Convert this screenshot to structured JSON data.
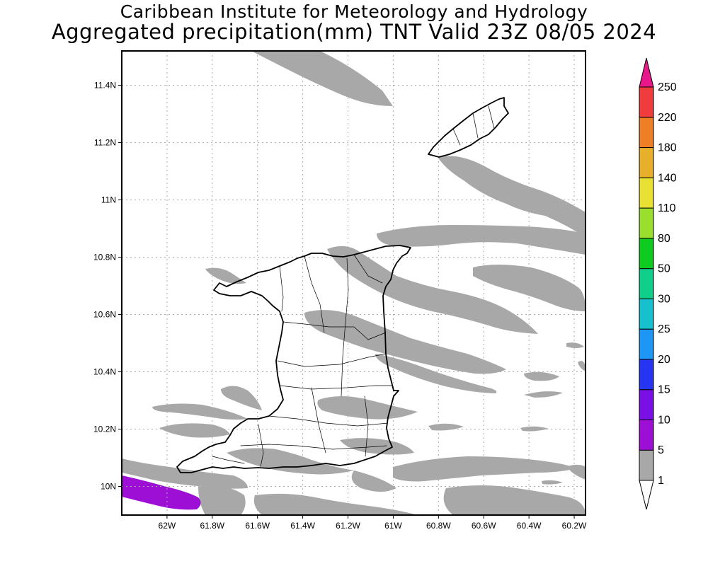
{
  "header": {
    "title_line1": "Caribbean Institute for Meteorology and Hydrology",
    "title_line2": "Aggregated precipitation(mm) TNT Valid 23Z 08/05 2024"
  },
  "map": {
    "lon_range": [
      -62.2,
      -60.15
    ],
    "lat_range": [
      9.9,
      11.52
    ],
    "lon_ticks": [
      {
        "value": -62.0,
        "label": "62W"
      },
      {
        "value": -61.8,
        "label": "61.8W"
      },
      {
        "value": -61.6,
        "label": "61.6W"
      },
      {
        "value": -61.4,
        "label": "61.4W"
      },
      {
        "value": -61.2,
        "label": "61.2W"
      },
      {
        "value": -61.0,
        "label": "61W"
      },
      {
        "value": -60.8,
        "label": "60.8W"
      },
      {
        "value": -60.6,
        "label": "60.6W"
      },
      {
        "value": -60.4,
        "label": "60.4W"
      },
      {
        "value": -60.2,
        "label": "60.2W"
      }
    ],
    "lat_ticks": [
      {
        "value": 10.0,
        "label": "10N"
      },
      {
        "value": 10.2,
        "label": "10.2N"
      },
      {
        "value": 10.4,
        "label": "10.4N"
      },
      {
        "value": 10.6,
        "label": "10.6N"
      },
      {
        "value": 10.8,
        "label": "10.8N"
      },
      {
        "value": 11.0,
        "label": "11N"
      },
      {
        "value": 11.2,
        "label": "11.2N"
      },
      {
        "value": 11.4,
        "label": "11.4N"
      }
    ],
    "grid": true,
    "precip_band_color": "#a8a8a8",
    "precip_high_color": "#9e0fd6",
    "coast_color": "#000000"
  },
  "colorbar": {
    "levels": [
      "1",
      "5",
      "10",
      "15",
      "20",
      "25",
      "30",
      "50",
      "80",
      "110",
      "140",
      "180",
      "220",
      "250"
    ],
    "colors": [
      "#a8a8a8",
      "#9e0fd6",
      "#7b10e6",
      "#2535f2",
      "#1e96f5",
      "#16c0cc",
      "#10cf8a",
      "#0fcb20",
      "#9bdf2e",
      "#e8e032",
      "#e8b02a",
      "#ee7f27",
      "#f03c3c",
      "#e8188a"
    ],
    "under_color": "#ffffff"
  }
}
